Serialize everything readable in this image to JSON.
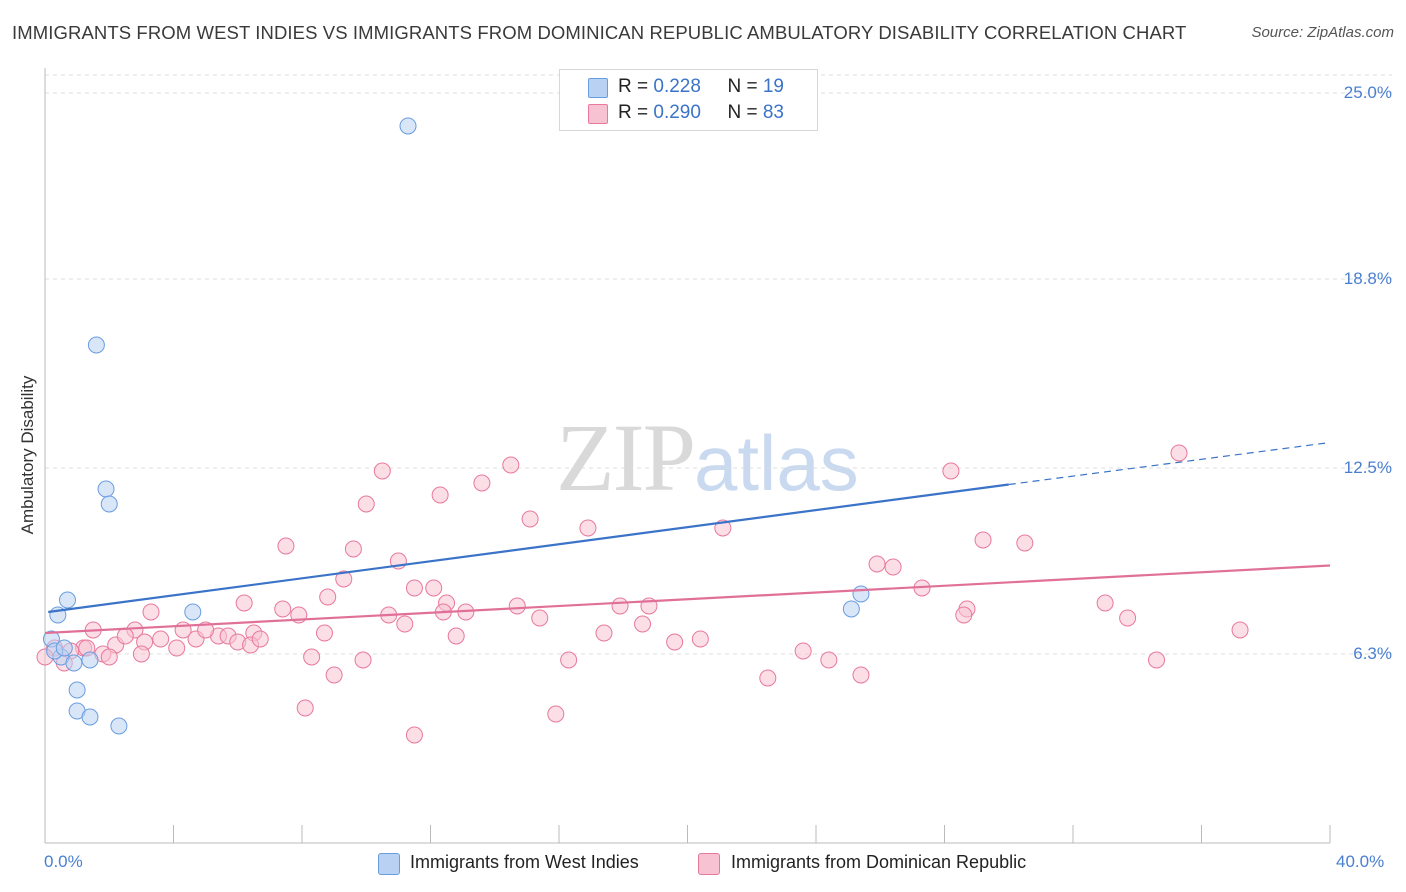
{
  "title": "IMMIGRANTS FROM WEST INDIES VS IMMIGRANTS FROM DOMINICAN REPUBLIC AMBULATORY DISABILITY CORRELATION CHART",
  "source": "Source: ZipAtlas.com",
  "watermark": {
    "zip": "ZIP",
    "atlas": "atlas"
  },
  "legend": {
    "rows": [
      {
        "r_label": "R = ",
        "r_value": "0.228",
        "n_label": "N = ",
        "n_value": "19"
      },
      {
        "r_label": "R = ",
        "r_value": "0.290",
        "n_label": "N = ",
        "n_value": "83"
      }
    ]
  },
  "chart_data": {
    "type": "scatter",
    "title": "IMMIGRANTS FROM WEST INDIES VS IMMIGRANTS FROM DOMINICAN REPUBLIC AMBULATORY DISABILITY CORRELATION CHART",
    "xlabel": "",
    "ylabel": "Ambulatory Disability",
    "xlim": [
      0,
      40
    ],
    "ylim": [
      0,
      25.6
    ],
    "x_ticks": [
      "0.0%",
      "40.0%"
    ],
    "y_ticks": [
      {
        "value": 25.0,
        "label": "25.0%"
      },
      {
        "value": 18.8,
        "label": "18.8%"
      },
      {
        "value": 12.5,
        "label": "12.5%"
      },
      {
        "value": 6.3,
        "label": "6.3%"
      }
    ],
    "grid": true,
    "legend_position": "top-center",
    "series": [
      {
        "name": "Immigrants from West Indies",
        "color": "#6a9de0",
        "fill": "#b9d2f3",
        "r": 0.228,
        "n": 19,
        "trend": {
          "x0": 0.1,
          "y0": 7.7,
          "x1": 30.0,
          "y1": 11.95,
          "dash_to_x": 40.0,
          "dash_to_y": 13.35
        },
        "points": [
          [
            11.3,
            23.9
          ],
          [
            1.6,
            16.6
          ],
          [
            1.9,
            11.8
          ],
          [
            2.0,
            11.3
          ],
          [
            0.7,
            8.1
          ],
          [
            0.4,
            7.6
          ],
          [
            4.6,
            7.7
          ],
          [
            25.1,
            7.8
          ],
          [
            25.4,
            8.3
          ],
          [
            0.2,
            6.8
          ],
          [
            0.5,
            6.2
          ],
          [
            0.9,
            6.0
          ],
          [
            1.4,
            6.1
          ],
          [
            1.0,
            5.1
          ],
          [
            1.0,
            4.4
          ],
          [
            1.4,
            4.2
          ],
          [
            2.3,
            3.9
          ],
          [
            0.3,
            6.4
          ],
          [
            0.6,
            6.5
          ]
        ]
      },
      {
        "name": "Immigrants from Dominican Republic",
        "color": "#e8799d",
        "fill": "#f7c2d2",
        "r": 0.29,
        "n": 83,
        "trend": {
          "x0": 0.0,
          "y0": 7.0,
          "x1": 40.0,
          "y1": 9.25
        },
        "points": [
          [
            14.5,
            12.6
          ],
          [
            10.5,
            12.4
          ],
          [
            28.2,
            12.4
          ],
          [
            35.3,
            13.0
          ],
          [
            13.6,
            12.0
          ],
          [
            12.3,
            11.6
          ],
          [
            10.0,
            11.3
          ],
          [
            15.1,
            10.8
          ],
          [
            16.9,
            10.5
          ],
          [
            21.1,
            10.5
          ],
          [
            29.2,
            10.1
          ],
          [
            30.5,
            10.0
          ],
          [
            7.5,
            9.9
          ],
          [
            9.6,
            9.8
          ],
          [
            11.0,
            9.4
          ],
          [
            25.9,
            9.3
          ],
          [
            26.4,
            9.2
          ],
          [
            9.3,
            8.8
          ],
          [
            11.5,
            8.5
          ],
          [
            12.1,
            8.5
          ],
          [
            8.8,
            8.2
          ],
          [
            12.5,
            8.0
          ],
          [
            27.3,
            8.5
          ],
          [
            33.0,
            8.0
          ],
          [
            6.2,
            8.0
          ],
          [
            7.4,
            7.8
          ],
          [
            10.7,
            7.6
          ],
          [
            12.4,
            7.7
          ],
          [
            13.1,
            7.7
          ],
          [
            14.7,
            7.9
          ],
          [
            17.9,
            7.9
          ],
          [
            18.8,
            7.9
          ],
          [
            28.7,
            7.8
          ],
          [
            33.7,
            7.5
          ],
          [
            3.3,
            7.7
          ],
          [
            7.9,
            7.6
          ],
          [
            6.5,
            7.0
          ],
          [
            4.3,
            7.1
          ],
          [
            2.8,
            7.1
          ],
          [
            1.5,
            7.1
          ],
          [
            3.6,
            6.8
          ],
          [
            4.7,
            6.8
          ],
          [
            5.4,
            6.9
          ],
          [
            5.7,
            6.9
          ],
          [
            6.0,
            6.7
          ],
          [
            6.4,
            6.6
          ],
          [
            6.7,
            6.8
          ],
          [
            3.1,
            6.7
          ],
          [
            4.1,
            6.5
          ],
          [
            2.2,
            6.6
          ],
          [
            8.7,
            7.0
          ],
          [
            11.2,
            7.3
          ],
          [
            12.8,
            6.9
          ],
          [
            15.4,
            7.5
          ],
          [
            17.4,
            7.0
          ],
          [
            18.6,
            7.3
          ],
          [
            19.6,
            6.7
          ],
          [
            20.4,
            6.8
          ],
          [
            23.6,
            6.4
          ],
          [
            28.6,
            7.6
          ],
          [
            1.2,
            6.5
          ],
          [
            1.8,
            6.3
          ],
          [
            2.0,
            6.2
          ],
          [
            0.8,
            6.4
          ],
          [
            0.3,
            6.5
          ],
          [
            0.0,
            6.2
          ],
          [
            8.3,
            6.2
          ],
          [
            9.9,
            6.1
          ],
          [
            16.3,
            6.1
          ],
          [
            24.4,
            6.1
          ],
          [
            34.6,
            6.1
          ],
          [
            9.0,
            5.6
          ],
          [
            22.5,
            5.5
          ],
          [
            25.4,
            5.6
          ],
          [
            37.2,
            7.1
          ],
          [
            8.1,
            4.5
          ],
          [
            15.9,
            4.3
          ],
          [
            11.5,
            3.6
          ],
          [
            0.6,
            6.0
          ],
          [
            1.3,
            6.5
          ],
          [
            2.5,
            6.9
          ],
          [
            5.0,
            7.1
          ],
          [
            3.0,
            6.3
          ]
        ]
      }
    ]
  },
  "bottom_legend": [
    {
      "label": "Immigrants from West Indies"
    },
    {
      "label": "Immigrants from Dominican Republic"
    }
  ]
}
